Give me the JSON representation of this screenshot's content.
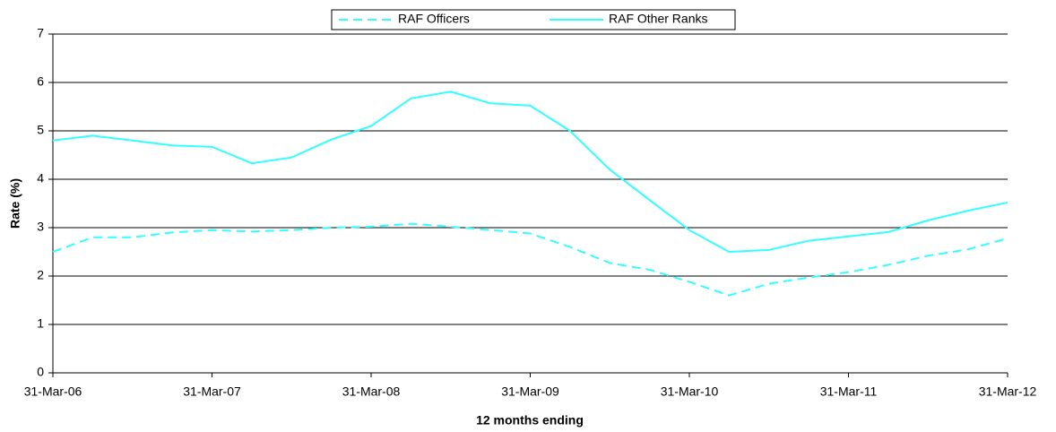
{
  "chart_data": {
    "type": "line",
    "xlabel": "12 months ending",
    "ylabel": "Rate (%)",
    "categories": [
      "31-Mar-06",
      null,
      null,
      null,
      "31-Mar-07",
      null,
      null,
      null,
      "31-Mar-08",
      null,
      null,
      null,
      "31-Mar-09",
      null,
      null,
      null,
      "31-Mar-10",
      null,
      null,
      null,
      "31-Mar-11",
      null,
      null,
      null,
      "31-Mar-12"
    ],
    "series": [
      {
        "name": "RAF Officers",
        "color": "#33ffff",
        "dash": true,
        "values": [
          2.5,
          2.8,
          2.8,
          2.9,
          2.95,
          2.92,
          2.95,
          3.0,
          3.02,
          3.08,
          3.02,
          2.95,
          2.88,
          2.6,
          2.27,
          2.13,
          1.88,
          1.6,
          1.84,
          1.97,
          2.08,
          2.23,
          2.42,
          2.55,
          2.78
        ]
      },
      {
        "name": "RAF Other Ranks",
        "color": "#33ffff",
        "dash": false,
        "values": [
          4.8,
          4.9,
          4.8,
          4.7,
          4.67,
          4.33,
          4.45,
          4.82,
          5.1,
          5.67,
          5.81,
          5.57,
          5.52,
          5.0,
          4.2,
          3.57,
          2.95,
          2.5,
          2.54,
          2.73,
          2.82,
          2.91,
          3.15,
          3.35,
          3.52
        ]
      }
    ],
    "ylim": [
      0,
      7
    ],
    "yticks": [
      0,
      1,
      2,
      3,
      4,
      5,
      6,
      7
    ],
    "grid": true,
    "legend": "top"
  }
}
